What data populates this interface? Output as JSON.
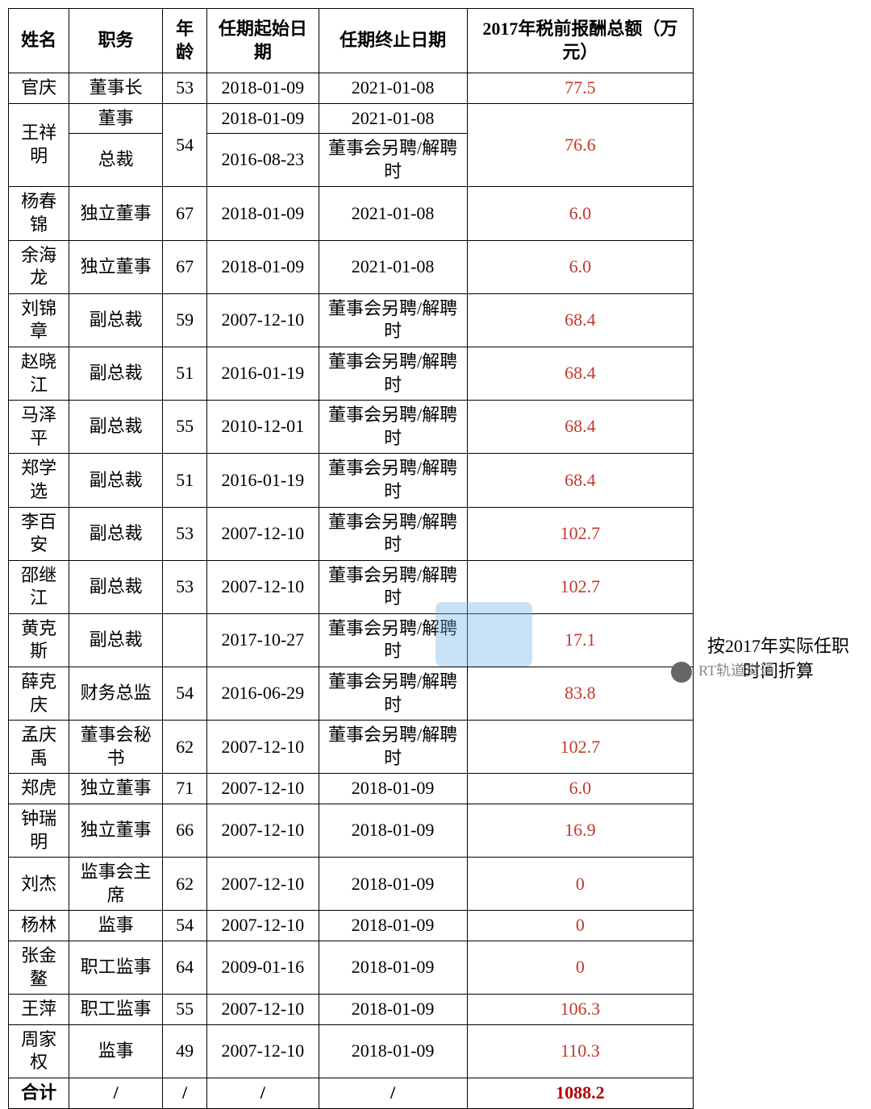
{
  "headers": {
    "name": "姓名",
    "position": "职务",
    "age": "年龄",
    "start": "任期起始日期",
    "end": "任期终止日期",
    "salary": "2017年税前报酬总额（万元）"
  },
  "rows": [
    {
      "name": "官庆",
      "position": "董事长",
      "age": "53",
      "start": "2018-01-09",
      "end": "2021-01-08",
      "salary": "77.5"
    },
    {
      "name": "王祥明",
      "position": "董事",
      "position2": "总裁",
      "age": "54",
      "start": "2018-01-09",
      "start2": "2016-08-23",
      "end": "2021-01-08",
      "end2": "董事会另聘/解聘时",
      "salary": "76.6",
      "merged": true
    },
    {
      "name": "杨春锦",
      "position": "独立董事",
      "age": "67",
      "start": "2018-01-09",
      "end": "2021-01-08",
      "salary": "6.0"
    },
    {
      "name": "余海龙",
      "position": "独立董事",
      "age": "67",
      "start": "2018-01-09",
      "end": "2021-01-08",
      "salary": "6.0"
    },
    {
      "name": "刘锦章",
      "position": "副总裁",
      "age": "59",
      "start": "2007-12-10",
      "end": "董事会另聘/解聘时",
      "salary": "68.4"
    },
    {
      "name": "赵晓江",
      "position": "副总裁",
      "age": "51",
      "start": "2016-01-19",
      "end": "董事会另聘/解聘时",
      "salary": "68.4"
    },
    {
      "name": "马泽平",
      "position": "副总裁",
      "age": "55",
      "start": "2010-12-01",
      "end": "董事会另聘/解聘时",
      "salary": "68.4"
    },
    {
      "name": "郑学选",
      "position": "副总裁",
      "age": "51",
      "start": "2016-01-19",
      "end": "董事会另聘/解聘时",
      "salary": "68.4"
    },
    {
      "name": "李百安",
      "position": "副总裁",
      "age": "53",
      "start": "2007-12-10",
      "end": "董事会另聘/解聘时",
      "salary": "102.7"
    },
    {
      "name": "邵继江",
      "position": "副总裁",
      "age": "53",
      "start": "2007-12-10",
      "end": "董事会另聘/解聘时",
      "salary": "102.7"
    },
    {
      "name": "黄克斯",
      "position": "副总裁",
      "age": "",
      "start": "2017-10-27",
      "end": "董事会另聘/解聘时",
      "salary": "17.1",
      "tall": true
    },
    {
      "name": "薛克庆",
      "position": "财务总监",
      "age": "54",
      "start": "2016-06-29",
      "end": "董事会另聘/解聘时",
      "salary": "83.8"
    },
    {
      "name": "孟庆禹",
      "position": "董事会秘书",
      "age": "62",
      "start": "2007-12-10",
      "end": "董事会另聘/解聘时",
      "salary": "102.7"
    },
    {
      "name": "郑虎",
      "position": "独立董事",
      "age": "71",
      "start": "2007-12-10",
      "end": "2018-01-09",
      "salary": "6.0"
    },
    {
      "name": "钟瑞明",
      "position": "独立董事",
      "age": "66",
      "start": "2007-12-10",
      "end": "2018-01-09",
      "salary": "16.9"
    },
    {
      "name": "刘杰",
      "position": "监事会主席",
      "age": "62",
      "start": "2007-12-10",
      "end": "2018-01-09",
      "salary": "0"
    },
    {
      "name": "杨林",
      "position": "监事",
      "age": "54",
      "start": "2007-12-10",
      "end": "2018-01-09",
      "salary": "0"
    },
    {
      "name": "张金鳌",
      "position": "职工监事",
      "age": "64",
      "start": "2009-01-16",
      "end": "2018-01-09",
      "salary": "0"
    },
    {
      "name": "王萍",
      "position": "职工监事",
      "age": "55",
      "start": "2007-12-10",
      "end": "2018-01-09",
      "salary": "106.3"
    },
    {
      "name": "周家权",
      "position": "监事",
      "age": "49",
      "start": "2007-12-10",
      "end": "2018-01-09",
      "salary": "110.3"
    }
  ],
  "total": {
    "name": "合计",
    "slash": "/",
    "salary": "1088.2"
  },
  "side_note": "按2017年实际任职时间折算",
  "watermark": "RT轨道交通"
}
